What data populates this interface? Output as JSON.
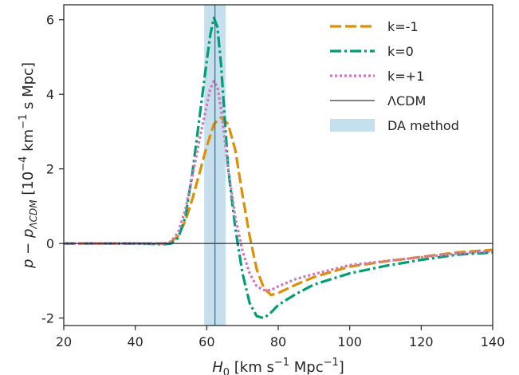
{
  "chart_data": {
    "type": "line",
    "title": "",
    "xlabel": {
      "main": "H",
      "sub": "0",
      "rest_a": " [km s",
      "sup_a": "−1",
      "rest_b": " Mpc",
      "sup_b": "−1",
      "rest_c": "]"
    },
    "ylabel": {
      "main": "p − p",
      "sub": "ΛCDM",
      "rest_a": " [10",
      "sup_a": "−4",
      "rest_b": " km",
      "sup_b": "−1",
      "rest_c": " s Mpc]"
    },
    "xlim": [
      20,
      140
    ],
    "ylim": [
      -2.2,
      6.4
    ],
    "xticks": [
      20,
      40,
      60,
      80,
      100,
      120,
      140
    ],
    "xtick_labels": [
      "20",
      "40",
      "60",
      "80",
      "100",
      "120",
      "140"
    ],
    "yticks": [
      -2,
      0,
      2,
      4,
      6
    ],
    "ytick_labels": [
      "-2",
      "0",
      "2",
      "4",
      "6"
    ],
    "grid": false,
    "legend_position": "top-right",
    "shaded_band": {
      "name": "DA method",
      "x_range": [
        59.3,
        65.3
      ],
      "color": "#c6dfec"
    },
    "reference_lines": [
      {
        "name": "ΛCDM",
        "orientation": "horizontal",
        "value": 0,
        "color": "#000000"
      },
      {
        "name": "",
        "orientation": "vertical",
        "value": 62.3,
        "color": "#1f6ea8"
      }
    ],
    "series": [
      {
        "name": "k=-1",
        "color": "#de8f05",
        "dash": "dashed",
        "x": [
          20,
          40,
          48,
          50,
          52,
          54,
          56,
          58,
          60,
          62,
          64,
          66,
          68,
          70,
          72,
          74,
          76,
          78,
          80,
          85,
          90,
          100,
          110,
          120,
          130,
          140
        ],
        "y": [
          0,
          0,
          0,
          0.05,
          0.2,
          0.6,
          1.2,
          1.9,
          2.6,
          3.2,
          3.38,
          3.2,
          2.5,
          1.3,
          0.2,
          -0.7,
          -1.2,
          -1.38,
          -1.33,
          -1.1,
          -0.9,
          -0.62,
          -0.48,
          -0.36,
          -0.24,
          -0.17
        ]
      },
      {
        "name": "k=0",
        "color": "#029e73",
        "dash": "dashdot",
        "x": [
          20,
          40,
          48,
          50,
          52,
          54,
          56,
          58,
          60,
          61,
          62,
          63,
          64,
          65,
          66,
          68,
          70,
          72,
          74,
          76,
          78,
          80,
          85,
          90,
          100,
          110,
          120,
          130,
          140
        ],
        "y": [
          0,
          0,
          -0.02,
          0,
          0.15,
          0.7,
          1.9,
          3.4,
          4.9,
          5.6,
          6.05,
          5.8,
          4.8,
          3.4,
          2.0,
          0.4,
          -0.8,
          -1.6,
          -1.95,
          -2.0,
          -1.85,
          -1.65,
          -1.35,
          -1.1,
          -0.8,
          -0.6,
          -0.44,
          -0.3,
          -0.24
        ]
      },
      {
        "name": "k=+1",
        "color": "#cc78bc",
        "dash": "dotted",
        "x": [
          20,
          40,
          48,
          50,
          52,
          54,
          56,
          58,
          60,
          61,
          62,
          63,
          64,
          65,
          66,
          68,
          70,
          72,
          74,
          76,
          78,
          80,
          85,
          90,
          100,
          110,
          120,
          130,
          140
        ],
        "y": [
          0,
          0,
          0,
          0.05,
          0.3,
          0.9,
          1.8,
          2.8,
          3.7,
          4.15,
          4.35,
          4.2,
          3.6,
          2.8,
          2.0,
          0.7,
          -0.2,
          -0.8,
          -1.15,
          -1.25,
          -1.25,
          -1.15,
          -0.95,
          -0.82,
          -0.58,
          -0.47,
          -0.37,
          -0.27,
          -0.2
        ]
      }
    ]
  }
}
